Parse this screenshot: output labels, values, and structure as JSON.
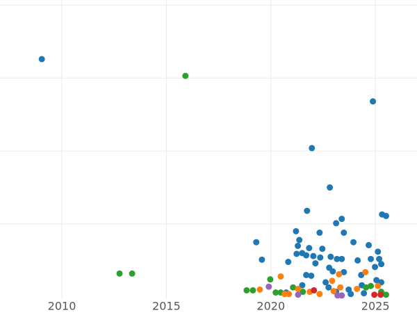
{
  "chart_data": {
    "type": "scatter",
    "xlim": [
      2007.04,
      2026.99
    ],
    "xticks": [
      2010,
      2015,
      2020,
      2025
    ],
    "ylim": [
      -0.03,
      4.07
    ],
    "ygrid": [
      1,
      2,
      3,
      4
    ],
    "grid": true,
    "series": [
      {
        "color": "#1f77b4",
        "x": [
          2009.04,
          2024.88,
          2021.96,
          2022.82,
          2021.73,
          2025.32,
          2025.51,
          2023.39,
          2023.12,
          2021.2,
          2022.33,
          2023.49,
          2019.3,
          2021.36,
          2021.29,
          2021.83,
          2023.95,
          2024.68,
          2022.46,
          2025.12,
          2021.23,
          2021.5,
          2021.69,
          2022.03,
          2022.86,
          2022.36,
          2023.16,
          2023.39,
          2019.57,
          2024.78,
          2025.18,
          2024.15,
          2020.83,
          2022.13,
          2025.28,
          2024.98,
          2022.79,
          2022.96,
          2023.49,
          2021.69,
          2021.93,
          2024.32,
          2025.05,
          2025.28,
          2022.62,
          2021.5,
          2024.35,
          2022.76,
          2023.72,
          2020.73,
          2023.12,
          2024.45,
          2023.82
        ],
        "values": [
          3.26,
          2.68,
          2.04,
          1.5,
          1.18,
          1.13,
          1.11,
          1.07,
          1.01,
          0.9,
          0.88,
          0.88,
          0.75,
          0.78,
          0.7,
          0.67,
          0.75,
          0.71,
          0.66,
          0.62,
          0.59,
          0.6,
          0.57,
          0.56,
          0.55,
          0.54,
          0.52,
          0.52,
          0.51,
          0.52,
          0.52,
          0.5,
          0.48,
          0.46,
          0.45,
          0.41,
          0.4,
          0.35,
          0.34,
          0.3,
          0.29,
          0.3,
          0.23,
          0.2,
          0.2,
          0.16,
          0.16,
          0.13,
          0.1,
          0.06,
          0.07,
          0.05,
          0.04
        ]
      },
      {
        "color": "#2ca02c",
        "x": [
          2015.91,
          2012.76,
          2013.36,
          2019.97,
          2018.84,
          2019.14,
          2020.23,
          2020.47,
          2021.06,
          2021.53,
          2024.55,
          2024.78,
          2025.28,
          2025.51
        ],
        "values": [
          3.03,
          0.32,
          0.32,
          0.24,
          0.09,
          0.09,
          0.06,
          0.06,
          0.13,
          0.07,
          0.13,
          0.15,
          0.07,
          0.03
        ]
      },
      {
        "color": "#ff7f0e",
        "x": [
          2019.47,
          2020.47,
          2020.66,
          2020.86,
          2021.86,
          2022.33,
          2022.93,
          2023.26,
          2023.32,
          2023.0,
          2024.52,
          2024.12,
          2025.12,
          2021.3
        ],
        "values": [
          0.1,
          0.28,
          0.04,
          0.04,
          0.07,
          0.04,
          0.22,
          0.31,
          0.13,
          0.08,
          0.34,
          0.11,
          0.15,
          0.11
        ]
      },
      {
        "color": "#d62728",
        "x": [
          2022.06,
          2024.95,
          2025.25
        ],
        "values": [
          0.09,
          0.03,
          0.03
        ]
      },
      {
        "color": "#9467bd",
        "x": [
          2019.9,
          2021.3,
          2023.19,
          2023.39
        ],
        "values": [
          0.14,
          0.03,
          0.02,
          0.02
        ]
      }
    ]
  }
}
